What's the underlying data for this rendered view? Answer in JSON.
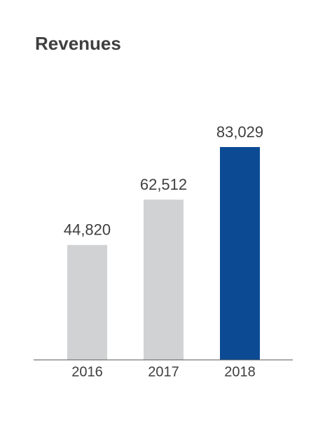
{
  "chart_data": {
    "type": "bar",
    "title": "Revenues",
    "categories": [
      "2016",
      "2017",
      "2018"
    ],
    "values": [
      44820,
      62512,
      83029
    ],
    "value_labels": [
      "44,820",
      "62,512",
      "83,029"
    ],
    "colors": [
      "#d1d2d3",
      "#d1d2d3",
      "#0c4b94"
    ]
  }
}
